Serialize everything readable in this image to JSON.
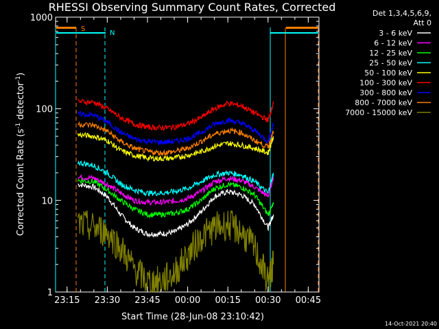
{
  "chart_data": {
    "type": "line",
    "title": "RHESSI Observing Summary Count Rates, Corrected",
    "xlabel": "Start Time (28-Jun-08 23:10:42)",
    "ylabel": "Corrected Count Rate (s⁻¹ detector⁻¹)",
    "ylabel_main": "Corrected Count Rate (s",
    "ylabel_mid": " detector",
    "ylabel_end": ")",
    "ylabel_sup": "-1",
    "yscale": "log",
    "ylim": [
      1,
      1000
    ],
    "xlim": [
      "23:10:42",
      "00:49:00"
    ],
    "x_tick_labels": [
      "23:15",
      "23:30",
      "23:45",
      "00:00",
      "00:15",
      "00:30",
      "00:45"
    ],
    "y_tick_labels": [
      "1",
      "10",
      "100",
      "1000"
    ],
    "grid": false,
    "legend_position": "right",
    "legend_header": [
      "Det 1,3,4,5,6,9,",
      "Att 0"
    ],
    "series": [
      {
        "name": "3 - 6 keV",
        "color": "#ffffff",
        "x": [
          "23:19",
          "23:25",
          "23:30",
          "23:35",
          "23:40",
          "23:45",
          "23:50",
          "23:55",
          "00:00",
          "00:05",
          "00:10",
          "00:15",
          "00:20",
          "00:25",
          "00:30",
          "00:32"
        ],
        "y": [
          15,
          14,
          11,
          7,
          5,
          4.3,
          4.3,
          4.5,
          5.5,
          7.5,
          11,
          12.5,
          11.5,
          9,
          5,
          7
        ]
      },
      {
        "name": "6 - 12 keV",
        "color": "#ff00ff",
        "x": [
          "23:19",
          "23:25",
          "23:30",
          "23:35",
          "23:40",
          "23:45",
          "23:50",
          "23:55",
          "00:00",
          "00:05",
          "00:10",
          "00:15",
          "00:20",
          "00:25",
          "00:30",
          "00:32"
        ],
        "y": [
          18,
          17.5,
          15,
          12,
          10,
          9.5,
          9.5,
          9.8,
          10.5,
          12.5,
          16,
          17.5,
          16.5,
          14,
          11,
          18
        ]
      },
      {
        "name": "12 - 25 keV",
        "color": "#00ff00",
        "x": [
          "23:19",
          "23:25",
          "23:30",
          "23:35",
          "23:40",
          "23:45",
          "23:50",
          "23:55",
          "00:00",
          "00:05",
          "00:10",
          "00:15",
          "00:20",
          "00:25",
          "00:30",
          "00:32"
        ],
        "y": [
          16.5,
          16,
          13,
          10,
          8,
          7,
          7,
          7.2,
          8,
          10,
          13.5,
          15,
          14,
          11.5,
          7,
          9
        ]
      },
      {
        "name": "25 - 50 keV",
        "color": "#00ffff",
        "x": [
          "23:19",
          "23:25",
          "23:30",
          "23:35",
          "23:40",
          "23:45",
          "23:50",
          "23:55",
          "00:00",
          "00:05",
          "00:10",
          "00:15",
          "00:20",
          "00:25",
          "00:30",
          "00:32"
        ],
        "y": [
          26,
          24,
          20,
          15,
          13,
          12,
          12,
          12.5,
          13.5,
          16,
          19,
          20,
          19,
          16,
          12,
          20
        ]
      },
      {
        "name": "50 - 100 keV",
        "color": "#ffff00",
        "x": [
          "23:19",
          "23:25",
          "23:30",
          "23:35",
          "23:40",
          "23:45",
          "23:50",
          "23:55",
          "00:00",
          "00:05",
          "00:10",
          "00:15",
          "00:20",
          "00:25",
          "00:30",
          "00:32"
        ],
        "y": [
          52,
          50,
          45,
          35,
          31,
          29,
          28.5,
          29,
          31,
          34,
          39,
          42,
          40,
          37,
          33,
          50
        ]
      },
      {
        "name": "100 - 300 keV",
        "color": "#ff0000",
        "x": [
          "23:19",
          "23:25",
          "23:30",
          "23:35",
          "23:40",
          "23:45",
          "23:50",
          "23:55",
          "00:00",
          "00:05",
          "00:10",
          "00:15",
          "00:20",
          "00:25",
          "00:30",
          "00:32"
        ],
        "y": [
          120,
          118,
          100,
          80,
          68,
          63,
          62,
          63,
          68,
          80,
          100,
          115,
          108,
          90,
          75,
          115
        ]
      },
      {
        "name": "300 - 800 keV",
        "color": "#0000ff",
        "x": [
          "23:19",
          "23:25",
          "23:30",
          "23:35",
          "23:40",
          "23:45",
          "23:50",
          "23:55",
          "00:00",
          "00:05",
          "00:10",
          "00:15",
          "00:20",
          "00:25",
          "00:30",
          "00:32"
        ],
        "y": [
          88,
          85,
          72,
          55,
          47,
          44,
          43,
          44,
          47,
          55,
          68,
          75,
          70,
          58,
          44,
          68
        ]
      },
      {
        "name": "800 - 7000 keV",
        "color": "#ff8000",
        "x": [
          "23:19",
          "23:25",
          "23:30",
          "23:35",
          "23:40",
          "23:45",
          "23:50",
          "23:55",
          "00:00",
          "00:05",
          "00:10",
          "00:15",
          "00:20",
          "00:25",
          "00:30",
          "00:32"
        ],
        "y": [
          68,
          66,
          57,
          44,
          37,
          34,
          33,
          34,
          37,
          44,
          53,
          58,
          55,
          45,
          38,
          56
        ]
      },
      {
        "name": "7000 - 15000 keV",
        "color": "#808000",
        "x": [
          "23:19",
          "23:25",
          "23:30",
          "23:35",
          "23:40",
          "23:45",
          "23:50",
          "23:55",
          "00:00",
          "00:05",
          "00:10",
          "00:15",
          "00:20",
          "00:25",
          "00:30",
          "00:32"
        ],
        "y": [
          5.5,
          5,
          4.5,
          3,
          1.8,
          1.3,
          1.3,
          1.6,
          2.5,
          4,
          5,
          5.5,
          4.5,
          3,
          1.3,
          2
        ]
      }
    ],
    "annotations": [
      {
        "label": "S",
        "color": "#ff8000"
      },
      {
        "label": "N",
        "color": "#00ffff"
      }
    ]
  },
  "timestamp": "14-Oct-2021 20:40"
}
